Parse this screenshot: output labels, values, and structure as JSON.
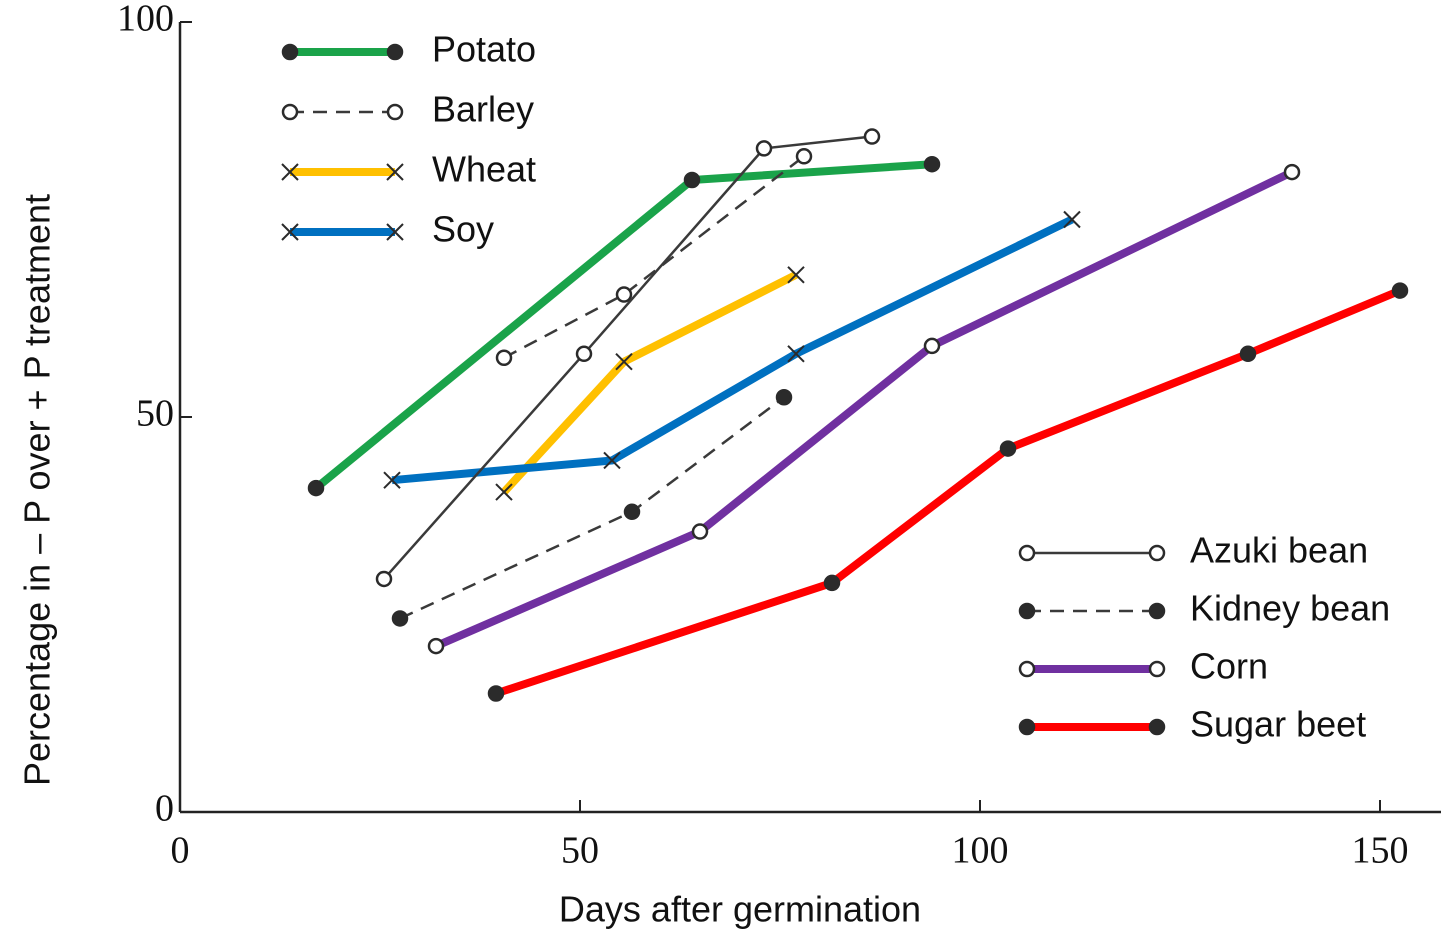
{
  "chart_data": {
    "type": "line",
    "x_label": "Days after germination",
    "y_label": "Percentage in – P over + P treatment",
    "xlim": [
      0,
      157
    ],
    "xticks": [
      0,
      50,
      100,
      150
    ],
    "ylim": [
      0,
      100
    ],
    "yticks": [
      0,
      50,
      100
    ],
    "marker_color": "#2b2b2b",
    "series": [
      {
        "name": "Potato",
        "color": "#1aa34a",
        "width": 8,
        "dash": false,
        "marker": "filled",
        "legend": "upper left",
        "x": [
          17,
          64,
          94
        ],
        "values": [
          41,
          80,
          82
        ]
      },
      {
        "name": "Barley",
        "color": "#3a3a3a",
        "width": 2.5,
        "dash": true,
        "marker": "open",
        "legend": "upper left",
        "x": [
          40.5,
          55.5,
          78
        ],
        "values": [
          57.5,
          65.5,
          83
        ]
      },
      {
        "name": "Wheat",
        "color": "#ffc000",
        "width": 8,
        "dash": false,
        "marker": "x",
        "legend": "upper left",
        "x": [
          40.5,
          55.5,
          77
        ],
        "values": [
          40.5,
          57,
          68
        ]
      },
      {
        "name": "Soy",
        "color": "#0070c0",
        "width": 8,
        "dash": false,
        "marker": "x",
        "legend": "upper left",
        "x": [
          26.5,
          54,
          77,
          111.5
        ],
        "values": [
          42,
          44.5,
          58,
          75
        ]
      },
      {
        "name": "Azuki bean",
        "color": "#3a3a3a",
        "width": 2.5,
        "dash": false,
        "marker": "open",
        "legend": "lower right",
        "x": [
          25.5,
          50.5,
          73,
          86.5
        ],
        "values": [
          29.5,
          58,
          84,
          85.5
        ]
      },
      {
        "name": "Kidney bean",
        "color": "#3a3a3a",
        "width": 2.5,
        "dash": true,
        "marker": "filled",
        "legend": "lower right",
        "x": [
          27.5,
          56.5,
          75.5
        ],
        "values": [
          24.5,
          38,
          52.5
        ]
      },
      {
        "name": "Corn",
        "color": "#7030a0",
        "width": 8,
        "dash": false,
        "marker": "open",
        "legend": "lower right",
        "x": [
          32,
          65,
          94,
          139
        ],
        "values": [
          21,
          35.5,
          59,
          81
        ]
      },
      {
        "name": "Sugar beet",
        "color": "#ff0000",
        "width": 8,
        "dash": false,
        "marker": "filled",
        "legend": "lower right",
        "x": [
          39.5,
          81.5,
          103.5,
          133.5,
          152.5
        ],
        "values": [
          15,
          29,
          46,
          58,
          66
        ]
      }
    ]
  }
}
